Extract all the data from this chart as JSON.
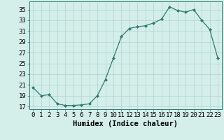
{
  "x": [
    0,
    1,
    2,
    3,
    4,
    5,
    6,
    7,
    8,
    9,
    10,
    11,
    12,
    13,
    14,
    15,
    16,
    17,
    18,
    19,
    20,
    21,
    22,
    23
  ],
  "y": [
    20.5,
    19.0,
    19.2,
    17.5,
    17.2,
    17.2,
    17.3,
    17.5,
    19.0,
    22.0,
    26.0,
    30.0,
    31.5,
    31.8,
    32.0,
    32.5,
    33.2,
    35.5,
    34.8,
    34.5,
    35.0,
    33.0,
    31.3,
    26.0
  ],
  "xlabel": "Humidex (Indice chaleur)",
  "xlim": [
    -0.5,
    23.5
  ],
  "ylim": [
    16.5,
    36.5
  ],
  "yticks": [
    17,
    19,
    21,
    23,
    25,
    27,
    29,
    31,
    33,
    35
  ],
  "xticks": [
    0,
    1,
    2,
    3,
    4,
    5,
    6,
    7,
    8,
    9,
    10,
    11,
    12,
    13,
    14,
    15,
    16,
    17,
    18,
    19,
    20,
    21,
    22,
    23
  ],
  "line_color": "#2e7d6d",
  "marker_color": "#2e7d6d",
  "bg_color": "#d4eeea",
  "grid_color": "#b0d4ce",
  "label_fontsize": 7.5,
  "tick_fontsize": 6.5
}
